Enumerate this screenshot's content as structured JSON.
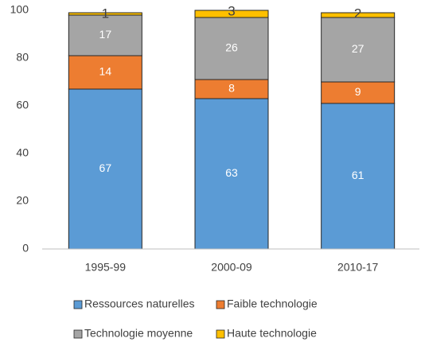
{
  "chart_data": {
    "type": "stacked-bar",
    "categories": [
      "1995-99",
      "2000-09",
      "2010-17"
    ],
    "series": [
      {
        "name": "Ressources naturelles",
        "color": "#5b9bd5",
        "values": [
          67,
          63,
          61
        ]
      },
      {
        "name": "Faible technologie",
        "color": "#ed7d31",
        "values": [
          14,
          8,
          9
        ]
      },
      {
        "name": "Technologie moyenne",
        "color": "#a5a5a5",
        "values": [
          17,
          26,
          27
        ]
      },
      {
        "name": "Haute technologie",
        "color": "#ffc000",
        "values": [
          1,
          3,
          2
        ]
      }
    ],
    "ylim": [
      0,
      100
    ],
    "yticks": [
      0,
      20,
      40,
      60,
      80,
      100
    ],
    "grid": false
  }
}
